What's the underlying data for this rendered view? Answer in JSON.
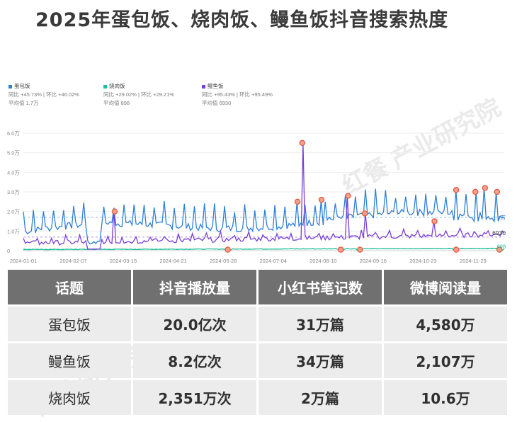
{
  "title": "2025年蛋包饭、烧肉饭、鳗鱼饭抖音搜索热度",
  "legend": [
    {
      "name": "蛋包饭",
      "stats": "同比 +45.73% | 环比 +46.02%",
      "avg": "平均值 1.7万",
      "color": "#2f7fd6"
    },
    {
      "name": "烧肉饭",
      "stats": "同比 +29.02% | 环比 +29.21%",
      "avg": "平均值 898",
      "color": "#1fbf9a"
    },
    {
      "name": "鳗鱼饭",
      "stats": "同比 +95.43% | 环比 +95.49%",
      "avg": "平均值 6930",
      "color": "#7a3fd6"
    }
  ],
  "watermark": [
    "红餐 产业研究院",
    "产业研究院"
  ],
  "chart_data": {
    "type": "line",
    "x_tick_labels": [
      "2024-01-01",
      "2024-02-07",
      "2024-03-15",
      "2024-04-21",
      "2024-05-28",
      "2024-07-04",
      "2024-08-10",
      "2024-09-16",
      "2024-10-23",
      "2024-11-29"
    ],
    "y_tick_labels": [
      "0",
      "1.0万",
      "2.0万",
      "3.0万",
      "4.0万",
      "5.0万",
      "6.0万"
    ],
    "ylim": [
      0,
      60000
    ],
    "end_labels": {
      "egg": "1.7万",
      "eel": "6930",
      "pork": "898"
    },
    "series": [
      {
        "name": "蛋包饭",
        "key": "egg",
        "color": "#2f7fd6",
        "average": 17000,
        "peaks": [
          {
            "x": 0.62,
            "y": 26000
          },
          {
            "x": 0.57,
            "y": 25000
          },
          {
            "x": 0.9,
            "y": 31000
          },
          {
            "x": 0.94,
            "y": 30000
          },
          {
            "x": 0.96,
            "y": 32000
          },
          {
            "x": 0.985,
            "y": 30000
          }
        ]
      },
      {
        "name": "烧肉饭",
        "key": "pork",
        "color": "#1fbf9a",
        "average": 898,
        "peaks": [
          {
            "x": 0.425,
            "y": 500
          },
          {
            "x": 0.66,
            "y": 500
          },
          {
            "x": 0.7,
            "y": 500
          },
          {
            "x": 0.9,
            "y": 500
          },
          {
            "x": 0.99,
            "y": 500
          }
        ]
      },
      {
        "name": "鳗鱼饭",
        "key": "eel",
        "color": "#7a3fd6",
        "average": 6930,
        "peaks": [
          {
            "x": 0.19,
            "y": 20000
          },
          {
            "x": 0.58,
            "y": 55000
          },
          {
            "x": 0.675,
            "y": 28000
          },
          {
            "x": 0.71,
            "y": 19000
          },
          {
            "x": 0.855,
            "y": 15000
          }
        ]
      }
    ]
  },
  "table": {
    "headers": [
      "话题",
      "抖音播放量",
      "小红书笔记数",
      "微博阅读量"
    ],
    "rows": [
      [
        "蛋包饭",
        "20.0亿次",
        "31万篇",
        "4,580万"
      ],
      [
        "鳗鱼饭",
        "8.2亿次",
        "34万篇",
        "2,107万"
      ],
      [
        "烧肉饭",
        "2,351万次",
        "2万篇",
        "10.6万"
      ]
    ]
  }
}
